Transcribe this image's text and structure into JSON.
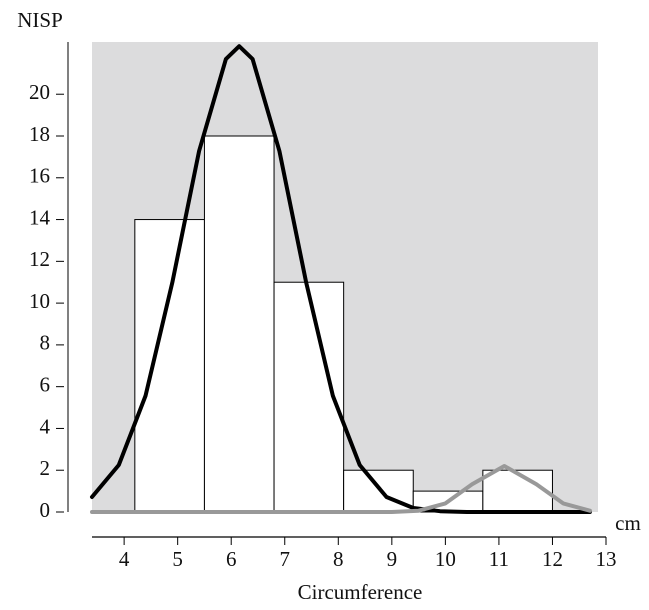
{
  "chart_data": {
    "type": "histogram",
    "ylabel": "NISP",
    "xlabel": "Circumference",
    "xunit": "cm",
    "bins": [
      4.2,
      5.5,
      6.8,
      8.1,
      9.4,
      10.7,
      12.0
    ],
    "counts": [
      14,
      18,
      11,
      2,
      1,
      2
    ],
    "bar_color": "#ffffff",
    "background": "#dcdcdd",
    "curves": [
      {
        "color": "#000000",
        "x": [
          3.4,
          3.9,
          4.4,
          4.9,
          5.4,
          5.9,
          6.15,
          6.4,
          6.9,
          7.4,
          7.9,
          8.4,
          8.9,
          9.4,
          9.9,
          10.4,
          11.0,
          12.7
        ],
        "values": [
          0.72,
          2.25,
          5.56,
          10.98,
          17.28,
          21.68,
          22.3,
          21.68,
          17.28,
          10.98,
          5.56,
          2.25,
          0.72,
          0.19,
          0.04,
          0,
          0,
          0
        ]
      },
      {
        "color": "#999999",
        "x": [
          3.4,
          9.0,
          9.5,
          10.0,
          10.5,
          11.1,
          11.7,
          12.2,
          12.7
        ],
        "values": [
          0,
          0,
          0.06,
          0.41,
          1.33,
          2.2,
          1.33,
          0.41,
          0.06
        ]
      }
    ],
    "xlim": [
      3.4,
      13
    ],
    "ylim": [
      0,
      22.5
    ],
    "xticks": [
      4,
      5,
      6,
      7,
      8,
      9,
      10,
      11,
      12,
      13
    ],
    "yticks": [
      0,
      2,
      4,
      6,
      8,
      10,
      12,
      14,
      16,
      18,
      20
    ]
  }
}
